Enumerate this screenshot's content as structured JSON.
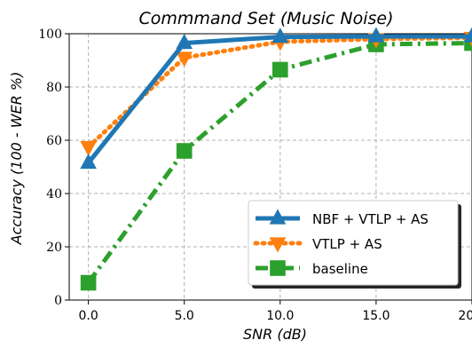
{
  "chart_data": {
    "type": "line",
    "title": "Commmand Set (Music Noise)",
    "xlabel": "SNR (dB)",
    "ylabel": "Accuracy (100 - WER %)",
    "categories": [
      "0.0",
      "5.0",
      "10.0",
      "15.0",
      "20.0"
    ],
    "x": [
      0,
      5,
      10,
      15,
      20
    ],
    "xlim": [
      -1,
      20
    ],
    "ylim": [
      0,
      100
    ],
    "yticks": [
      "0",
      "20",
      "40",
      "60",
      "80",
      "100"
    ],
    "ytick_values": [
      0,
      20,
      40,
      60,
      80,
      100
    ],
    "grid": true,
    "legend_position": "bottom-right",
    "series": [
      {
        "name": "NBF + VTLP + AS",
        "values": [
          51.5,
          96.5,
          98.8,
          99.0,
          99.0
        ],
        "color": "#1f77b4",
        "marker": "triangle-up",
        "linestyle": "solid"
      },
      {
        "name": "VTLP + AS",
        "values": [
          57.5,
          91.0,
          97.0,
          98.0,
          98.5
        ],
        "color": "#ff7f0e",
        "marker": "triangle-down",
        "linestyle": "dotted"
      },
      {
        "name": "baseline",
        "values": [
          6.5,
          56.0,
          86.5,
          96.0,
          96.5
        ],
        "color": "#2ca02c",
        "marker": "square",
        "linestyle": "dashdot"
      }
    ]
  }
}
